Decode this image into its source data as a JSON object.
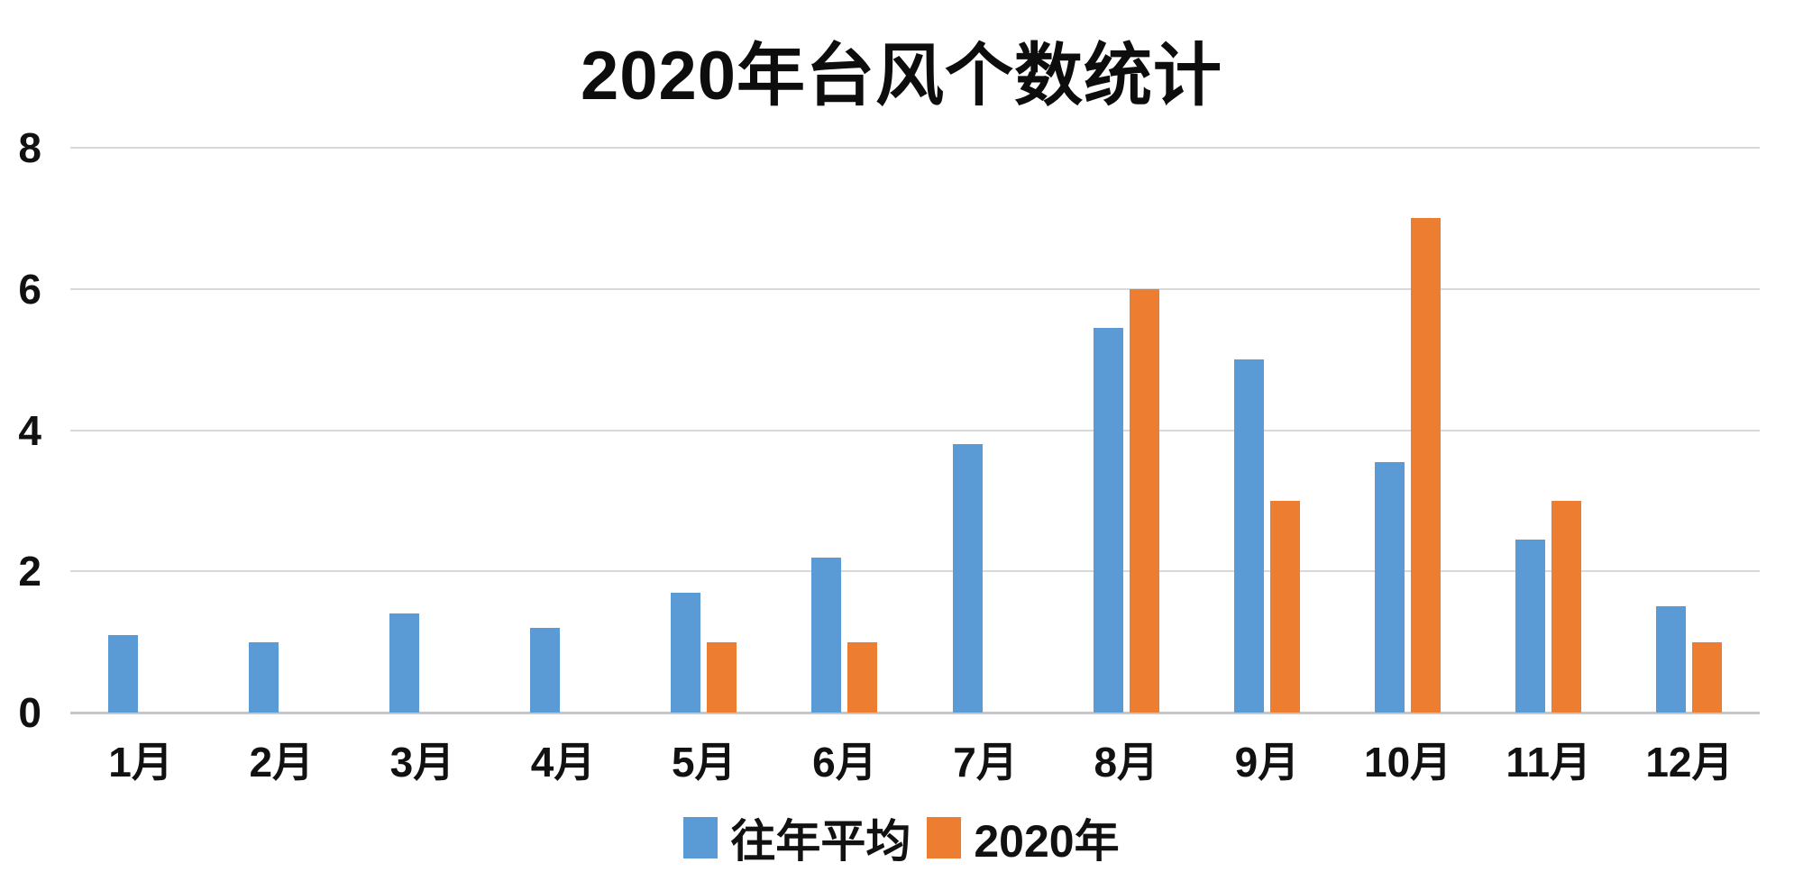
{
  "chart_data": {
    "type": "bar",
    "title": "2020年台风个数统计",
    "categories": [
      "1月",
      "2月",
      "3月",
      "4月",
      "5月",
      "6月",
      "7月",
      "8月",
      "9月",
      "10月",
      "11月",
      "12月"
    ],
    "series": [
      {
        "name": "往年平均",
        "color": "#5B9BD5",
        "values": [
          1.1,
          1.0,
          1.4,
          1.2,
          1.7,
          2.2,
          3.8,
          5.45,
          5.0,
          3.55,
          2.45,
          1.5
        ]
      },
      {
        "name": "2020年",
        "color": "#ED7D31",
        "values": [
          0,
          0,
          0,
          0,
          1.0,
          1.0,
          0,
          6.0,
          3.0,
          7.0,
          3.0,
          1.0
        ]
      }
    ],
    "y_axis": {
      "min": 0,
      "max": 8,
      "ticks": [
        0,
        2,
        4,
        6,
        8
      ]
    },
    "xlabel": "",
    "ylabel": "",
    "grid": "horizontal-only",
    "legend_position": "bottom-center",
    "gridline_color": "#d9d9d9",
    "text_color": "#111111",
    "background_color": "#ffffff"
  }
}
